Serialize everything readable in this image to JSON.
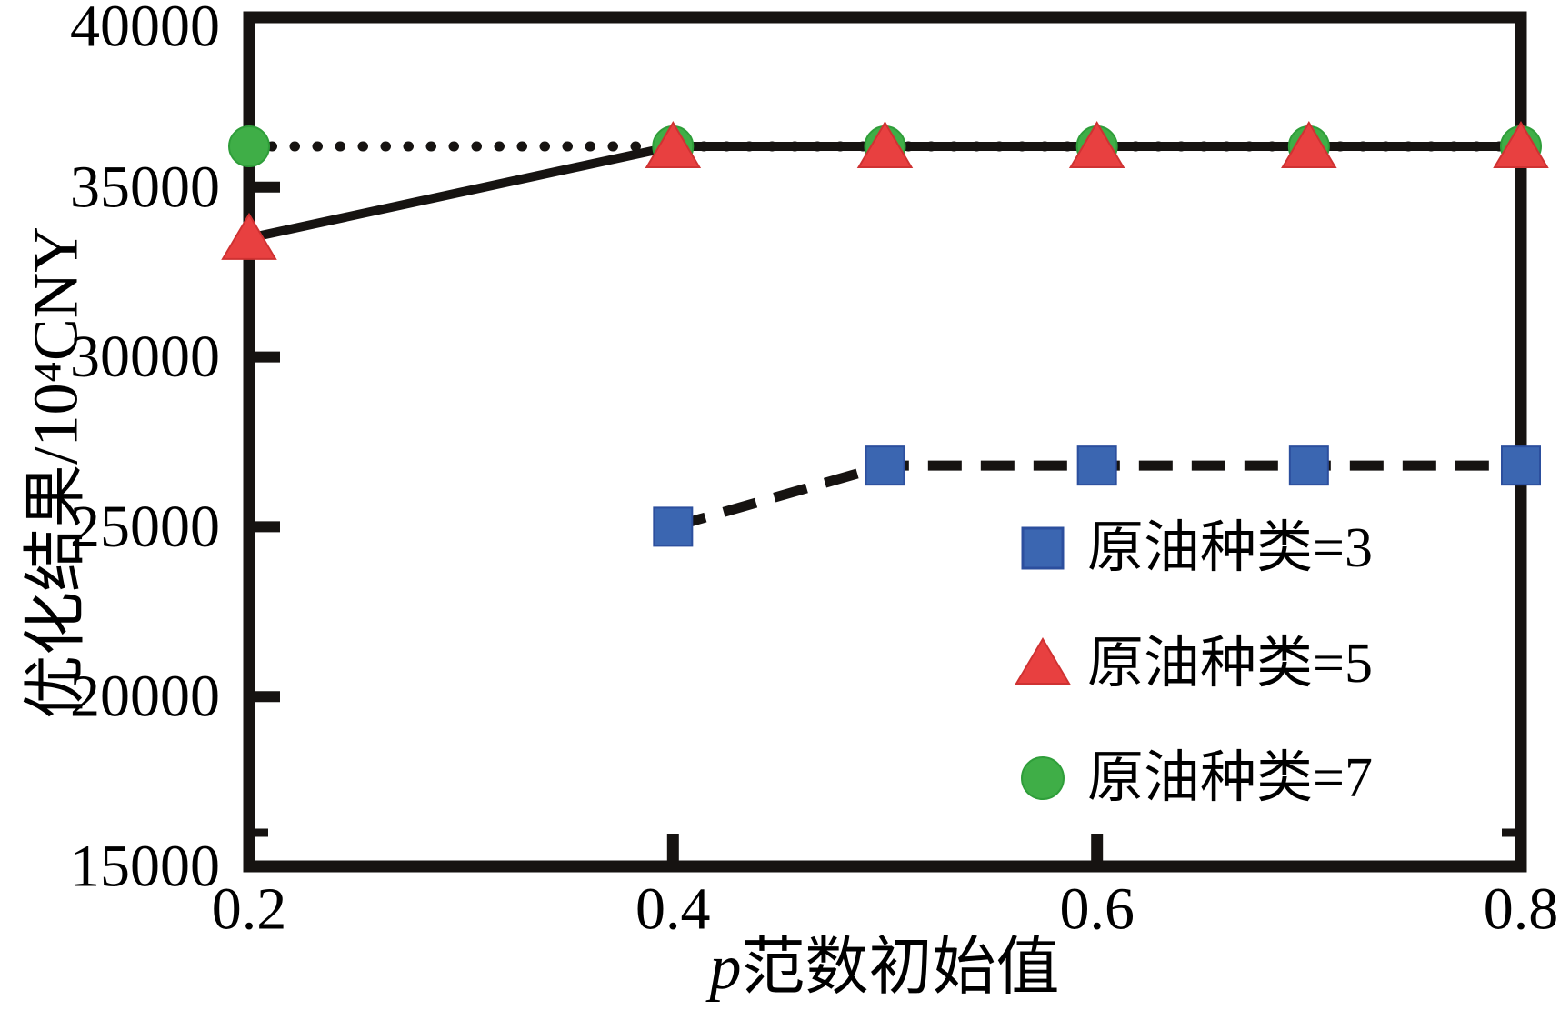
{
  "chart_data": {
    "type": "line",
    "title": "",
    "xlabel": "p范数初始值",
    "xlabel_italic_prefix": "p",
    "xlabel_rest": "范数初始值",
    "ylabel": "优化结果/10⁴CNY",
    "xlim": [
      0.2,
      0.8
    ],
    "ylim": [
      15000,
      40000
    ],
    "x_tick_values": [
      0.2,
      0.4,
      0.6,
      0.8
    ],
    "x_ticks": [
      "0.2",
      "0.4",
      "0.6",
      "0.8"
    ],
    "y_tick_values": [
      40000,
      35000,
      30000,
      25000,
      20000,
      15000
    ],
    "y_ticks": [
      "40000",
      "35000",
      "30000",
      "25000",
      "20000",
      "15000"
    ],
    "grid": false,
    "axis_color": "#161311",
    "legend": {
      "position": "inside-lower-right"
    },
    "series": [
      {
        "name": "原油种类=3",
        "marker": "square",
        "color": "#3b66b1",
        "edge_color": "#2c4f9e",
        "line_style": "dashed",
        "line_color": "#161311",
        "x": [
          0.4,
          0.5,
          0.6,
          0.7,
          0.8
        ],
        "y": [
          25000,
          26800,
          26800,
          26800,
          26800
        ]
      },
      {
        "name": "原油种类=5",
        "marker": "triangle",
        "color": "#e84040",
        "edge_color": "#cf3232",
        "line_style": "solid",
        "line_color": "#161311",
        "x": [
          0.2,
          0.4,
          0.5,
          0.6,
          0.7,
          0.8
        ],
        "y": [
          33500,
          36200,
          36200,
          36200,
          36200,
          36200
        ]
      },
      {
        "name": "原油种类=7",
        "marker": "circle",
        "color": "#3fae47",
        "edge_color": "#2f9e3a",
        "line_style": "dotted",
        "line_color": "#161311",
        "x": [
          0.2,
          0.4,
          0.5,
          0.6,
          0.7,
          0.8
        ],
        "y": [
          36200,
          36200,
          36200,
          36200,
          36200,
          36200
        ]
      }
    ]
  }
}
